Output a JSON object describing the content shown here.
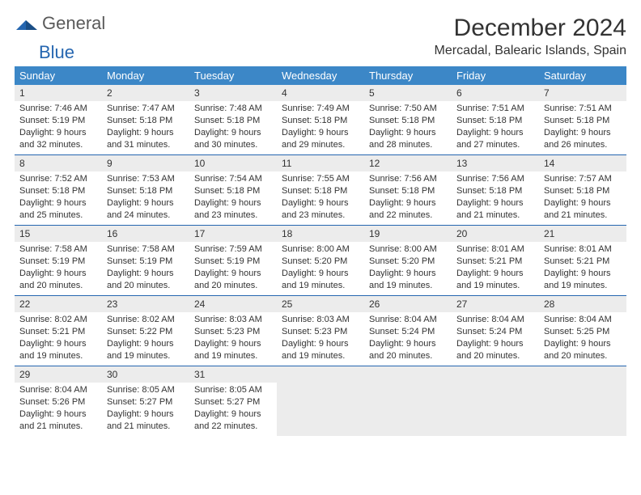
{
  "logo": {
    "general": "General",
    "blue": "Blue"
  },
  "title": "December 2024",
  "location": "Mercadal, Balearic Islands, Spain",
  "colors": {
    "header_bg": "#3c87c7",
    "header_text": "#ffffff",
    "daynum_bg": "#ececec",
    "rule": "#2566b0",
    "text": "#333333",
    "logo_gray": "#5a5a5a",
    "logo_blue": "#2566b0"
  },
  "day_names": [
    "Sunday",
    "Monday",
    "Tuesday",
    "Wednesday",
    "Thursday",
    "Friday",
    "Saturday"
  ],
  "weeks": [
    [
      {
        "n": "1",
        "sr": "Sunrise: 7:46 AM",
        "ss": "Sunset: 5:19 PM",
        "d1": "Daylight: 9 hours",
        "d2": "and 32 minutes."
      },
      {
        "n": "2",
        "sr": "Sunrise: 7:47 AM",
        "ss": "Sunset: 5:18 PM",
        "d1": "Daylight: 9 hours",
        "d2": "and 31 minutes."
      },
      {
        "n": "3",
        "sr": "Sunrise: 7:48 AM",
        "ss": "Sunset: 5:18 PM",
        "d1": "Daylight: 9 hours",
        "d2": "and 30 minutes."
      },
      {
        "n": "4",
        "sr": "Sunrise: 7:49 AM",
        "ss": "Sunset: 5:18 PM",
        "d1": "Daylight: 9 hours",
        "d2": "and 29 minutes."
      },
      {
        "n": "5",
        "sr": "Sunrise: 7:50 AM",
        "ss": "Sunset: 5:18 PM",
        "d1": "Daylight: 9 hours",
        "d2": "and 28 minutes."
      },
      {
        "n": "6",
        "sr": "Sunrise: 7:51 AM",
        "ss": "Sunset: 5:18 PM",
        "d1": "Daylight: 9 hours",
        "d2": "and 27 minutes."
      },
      {
        "n": "7",
        "sr": "Sunrise: 7:51 AM",
        "ss": "Sunset: 5:18 PM",
        "d1": "Daylight: 9 hours",
        "d2": "and 26 minutes."
      }
    ],
    [
      {
        "n": "8",
        "sr": "Sunrise: 7:52 AM",
        "ss": "Sunset: 5:18 PM",
        "d1": "Daylight: 9 hours",
        "d2": "and 25 minutes."
      },
      {
        "n": "9",
        "sr": "Sunrise: 7:53 AM",
        "ss": "Sunset: 5:18 PM",
        "d1": "Daylight: 9 hours",
        "d2": "and 24 minutes."
      },
      {
        "n": "10",
        "sr": "Sunrise: 7:54 AM",
        "ss": "Sunset: 5:18 PM",
        "d1": "Daylight: 9 hours",
        "d2": "and 23 minutes."
      },
      {
        "n": "11",
        "sr": "Sunrise: 7:55 AM",
        "ss": "Sunset: 5:18 PM",
        "d1": "Daylight: 9 hours",
        "d2": "and 23 minutes."
      },
      {
        "n": "12",
        "sr": "Sunrise: 7:56 AM",
        "ss": "Sunset: 5:18 PM",
        "d1": "Daylight: 9 hours",
        "d2": "and 22 minutes."
      },
      {
        "n": "13",
        "sr": "Sunrise: 7:56 AM",
        "ss": "Sunset: 5:18 PM",
        "d1": "Daylight: 9 hours",
        "d2": "and 21 minutes."
      },
      {
        "n": "14",
        "sr": "Sunrise: 7:57 AM",
        "ss": "Sunset: 5:18 PM",
        "d1": "Daylight: 9 hours",
        "d2": "and 21 minutes."
      }
    ],
    [
      {
        "n": "15",
        "sr": "Sunrise: 7:58 AM",
        "ss": "Sunset: 5:19 PM",
        "d1": "Daylight: 9 hours",
        "d2": "and 20 minutes."
      },
      {
        "n": "16",
        "sr": "Sunrise: 7:58 AM",
        "ss": "Sunset: 5:19 PM",
        "d1": "Daylight: 9 hours",
        "d2": "and 20 minutes."
      },
      {
        "n": "17",
        "sr": "Sunrise: 7:59 AM",
        "ss": "Sunset: 5:19 PM",
        "d1": "Daylight: 9 hours",
        "d2": "and 20 minutes."
      },
      {
        "n": "18",
        "sr": "Sunrise: 8:00 AM",
        "ss": "Sunset: 5:20 PM",
        "d1": "Daylight: 9 hours",
        "d2": "and 19 minutes."
      },
      {
        "n": "19",
        "sr": "Sunrise: 8:00 AM",
        "ss": "Sunset: 5:20 PM",
        "d1": "Daylight: 9 hours",
        "d2": "and 19 minutes."
      },
      {
        "n": "20",
        "sr": "Sunrise: 8:01 AM",
        "ss": "Sunset: 5:21 PM",
        "d1": "Daylight: 9 hours",
        "d2": "and 19 minutes."
      },
      {
        "n": "21",
        "sr": "Sunrise: 8:01 AM",
        "ss": "Sunset: 5:21 PM",
        "d1": "Daylight: 9 hours",
        "d2": "and 19 minutes."
      }
    ],
    [
      {
        "n": "22",
        "sr": "Sunrise: 8:02 AM",
        "ss": "Sunset: 5:21 PM",
        "d1": "Daylight: 9 hours",
        "d2": "and 19 minutes."
      },
      {
        "n": "23",
        "sr": "Sunrise: 8:02 AM",
        "ss": "Sunset: 5:22 PM",
        "d1": "Daylight: 9 hours",
        "d2": "and 19 minutes."
      },
      {
        "n": "24",
        "sr": "Sunrise: 8:03 AM",
        "ss": "Sunset: 5:23 PM",
        "d1": "Daylight: 9 hours",
        "d2": "and 19 minutes."
      },
      {
        "n": "25",
        "sr": "Sunrise: 8:03 AM",
        "ss": "Sunset: 5:23 PM",
        "d1": "Daylight: 9 hours",
        "d2": "and 19 minutes."
      },
      {
        "n": "26",
        "sr": "Sunrise: 8:04 AM",
        "ss": "Sunset: 5:24 PM",
        "d1": "Daylight: 9 hours",
        "d2": "and 20 minutes."
      },
      {
        "n": "27",
        "sr": "Sunrise: 8:04 AM",
        "ss": "Sunset: 5:24 PM",
        "d1": "Daylight: 9 hours",
        "d2": "and 20 minutes."
      },
      {
        "n": "28",
        "sr": "Sunrise: 8:04 AM",
        "ss": "Sunset: 5:25 PM",
        "d1": "Daylight: 9 hours",
        "d2": "and 20 minutes."
      }
    ],
    [
      {
        "n": "29",
        "sr": "Sunrise: 8:04 AM",
        "ss": "Sunset: 5:26 PM",
        "d1": "Daylight: 9 hours",
        "d2": "and 21 minutes."
      },
      {
        "n": "30",
        "sr": "Sunrise: 8:05 AM",
        "ss": "Sunset: 5:27 PM",
        "d1": "Daylight: 9 hours",
        "d2": "and 21 minutes."
      },
      {
        "n": "31",
        "sr": "Sunrise: 8:05 AM",
        "ss": "Sunset: 5:27 PM",
        "d1": "Daylight: 9 hours",
        "d2": "and 22 minutes."
      },
      {
        "empty": true
      },
      {
        "empty": true
      },
      {
        "empty": true
      },
      {
        "empty": true
      }
    ]
  ]
}
